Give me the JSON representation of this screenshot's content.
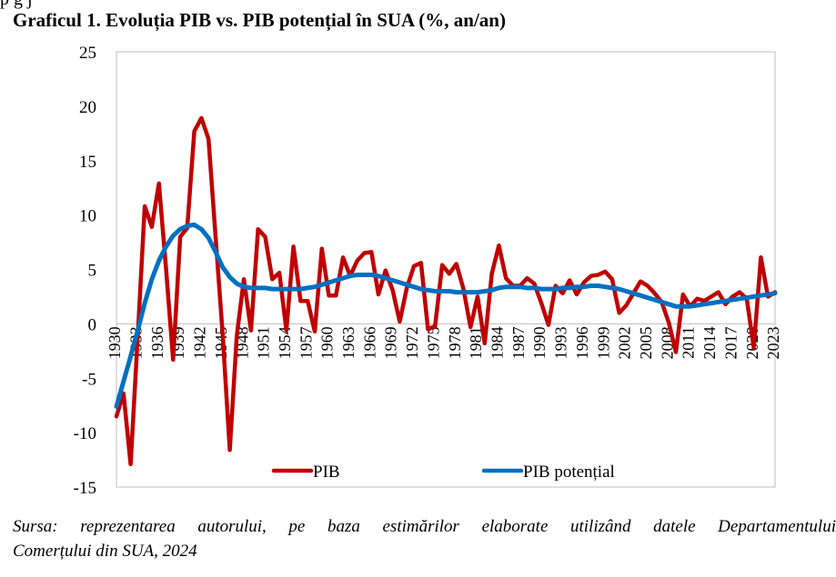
{
  "header_fragment": "p                     g                     j",
  "title": "Graficul 1. Evoluția PIB vs. PIB potențial în SUA (%, an/an)",
  "source_line1": "Sursa: reprezentarea autorului, pe baza estimărilor elaborate utilizând datele Departamentului",
  "source_line2": "Comerțului din SUA, 2024",
  "chart_data": {
    "type": "line",
    "title": "Graficul 1. Evoluția PIB vs. PIB potențial în SUA (%, an/an)",
    "xlabel": "",
    "ylabel": "",
    "ylim": [
      -15,
      25
    ],
    "yticks": [
      -15,
      -10,
      -5,
      0,
      5,
      10,
      15,
      20,
      25
    ],
    "xticks": [
      1930,
      1933,
      1936,
      1939,
      1942,
      1945,
      1948,
      1951,
      1954,
      1957,
      1960,
      1963,
      1966,
      1969,
      1972,
      1975,
      1978,
      1981,
      1984,
      1987,
      1990,
      1993,
      1996,
      1999,
      2002,
      2005,
      2008,
      2011,
      2014,
      2017,
      2020,
      2023
    ],
    "xlim": [
      1930,
      2023
    ],
    "grid": false,
    "legend": "bottom-center",
    "x": [
      1930,
      1931,
      1932,
      1933,
      1934,
      1935,
      1936,
      1937,
      1938,
      1939,
      1940,
      1941,
      1942,
      1943,
      1944,
      1945,
      1946,
      1947,
      1948,
      1949,
      1950,
      1951,
      1952,
      1953,
      1954,
      1955,
      1956,
      1957,
      1958,
      1959,
      1960,
      1961,
      1962,
      1963,
      1964,
      1965,
      1966,
      1967,
      1968,
      1969,
      1970,
      1971,
      1972,
      1973,
      1974,
      1975,
      1976,
      1977,
      1978,
      1979,
      1980,
      1981,
      1982,
      1983,
      1984,
      1985,
      1986,
      1987,
      1988,
      1989,
      1990,
      1991,
      1992,
      1993,
      1994,
      1995,
      1996,
      1997,
      1998,
      1999,
      2000,
      2001,
      2002,
      2003,
      2004,
      2005,
      2006,
      2007,
      2008,
      2009,
      2010,
      2011,
      2012,
      2013,
      2014,
      2015,
      2016,
      2017,
      2018,
      2019,
      2020,
      2021,
      2022,
      2023
    ],
    "series": [
      {
        "name": "PIB",
        "color": "#C00000",
        "values": [
          -8.5,
          -6.4,
          -12.9,
          -1.2,
          10.8,
          8.9,
          12.9,
          5.1,
          -3.3,
          8.0,
          8.8,
          17.7,
          18.9,
          17.0,
          8.0,
          -1.0,
          -11.6,
          -1.1,
          4.1,
          -0.6,
          8.7,
          8.0,
          4.1,
          4.7,
          -0.6,
          7.1,
          2.1,
          2.1,
          -0.7,
          6.9,
          2.6,
          2.6,
          6.1,
          4.4,
          5.8,
          6.5,
          6.6,
          2.7,
          4.9,
          3.1,
          0.2,
          3.3,
          5.3,
          5.6,
          -0.5,
          -0.2,
          5.4,
          4.6,
          5.5,
          3.2,
          -0.3,
          2.5,
          -1.8,
          4.6,
          7.2,
          4.2,
          3.5,
          3.5,
          4.2,
          3.7,
          1.9,
          -0.1,
          3.5,
          2.8,
          4.0,
          2.7,
          3.8,
          4.4,
          4.5,
          4.8,
          4.1,
          1.0,
          1.7,
          2.8,
          3.9,
          3.5,
          2.8,
          2.0,
          0.1,
          -2.6,
          2.7,
          1.6,
          2.3,
          2.1,
          2.5,
          2.9,
          1.8,
          2.5,
          2.9,
          2.3,
          -2.2,
          6.1,
          2.5,
          2.9
        ]
      },
      {
        "name": "PIB potențial",
        "color": "#0070C0",
        "values": [
          -7.6,
          -5.3,
          -3.0,
          -0.6,
          1.9,
          4.1,
          5.8,
          7.1,
          8.1,
          8.7,
          9.0,
          9.1,
          8.7,
          7.9,
          6.6,
          5.2,
          4.3,
          3.7,
          3.4,
          3.3,
          3.3,
          3.3,
          3.2,
          3.2,
          3.2,
          3.2,
          3.2,
          3.3,
          3.4,
          3.6,
          3.8,
          4.0,
          4.2,
          4.4,
          4.5,
          4.5,
          4.5,
          4.4,
          4.2,
          4.0,
          3.8,
          3.6,
          3.4,
          3.2,
          3.1,
          3.0,
          3.0,
          3.0,
          2.9,
          2.9,
          2.9,
          2.9,
          3.0,
          3.1,
          3.3,
          3.4,
          3.4,
          3.4,
          3.3,
          3.3,
          3.2,
          3.2,
          3.2,
          3.3,
          3.3,
          3.4,
          3.4,
          3.5,
          3.5,
          3.4,
          3.3,
          3.2,
          3.0,
          2.8,
          2.6,
          2.4,
          2.2,
          2.0,
          1.8,
          1.6,
          1.6,
          1.6,
          1.7,
          1.8,
          1.9,
          2.0,
          2.1,
          2.2,
          2.3,
          2.4,
          2.5,
          2.6,
          2.7,
          2.8
        ]
      }
    ]
  }
}
